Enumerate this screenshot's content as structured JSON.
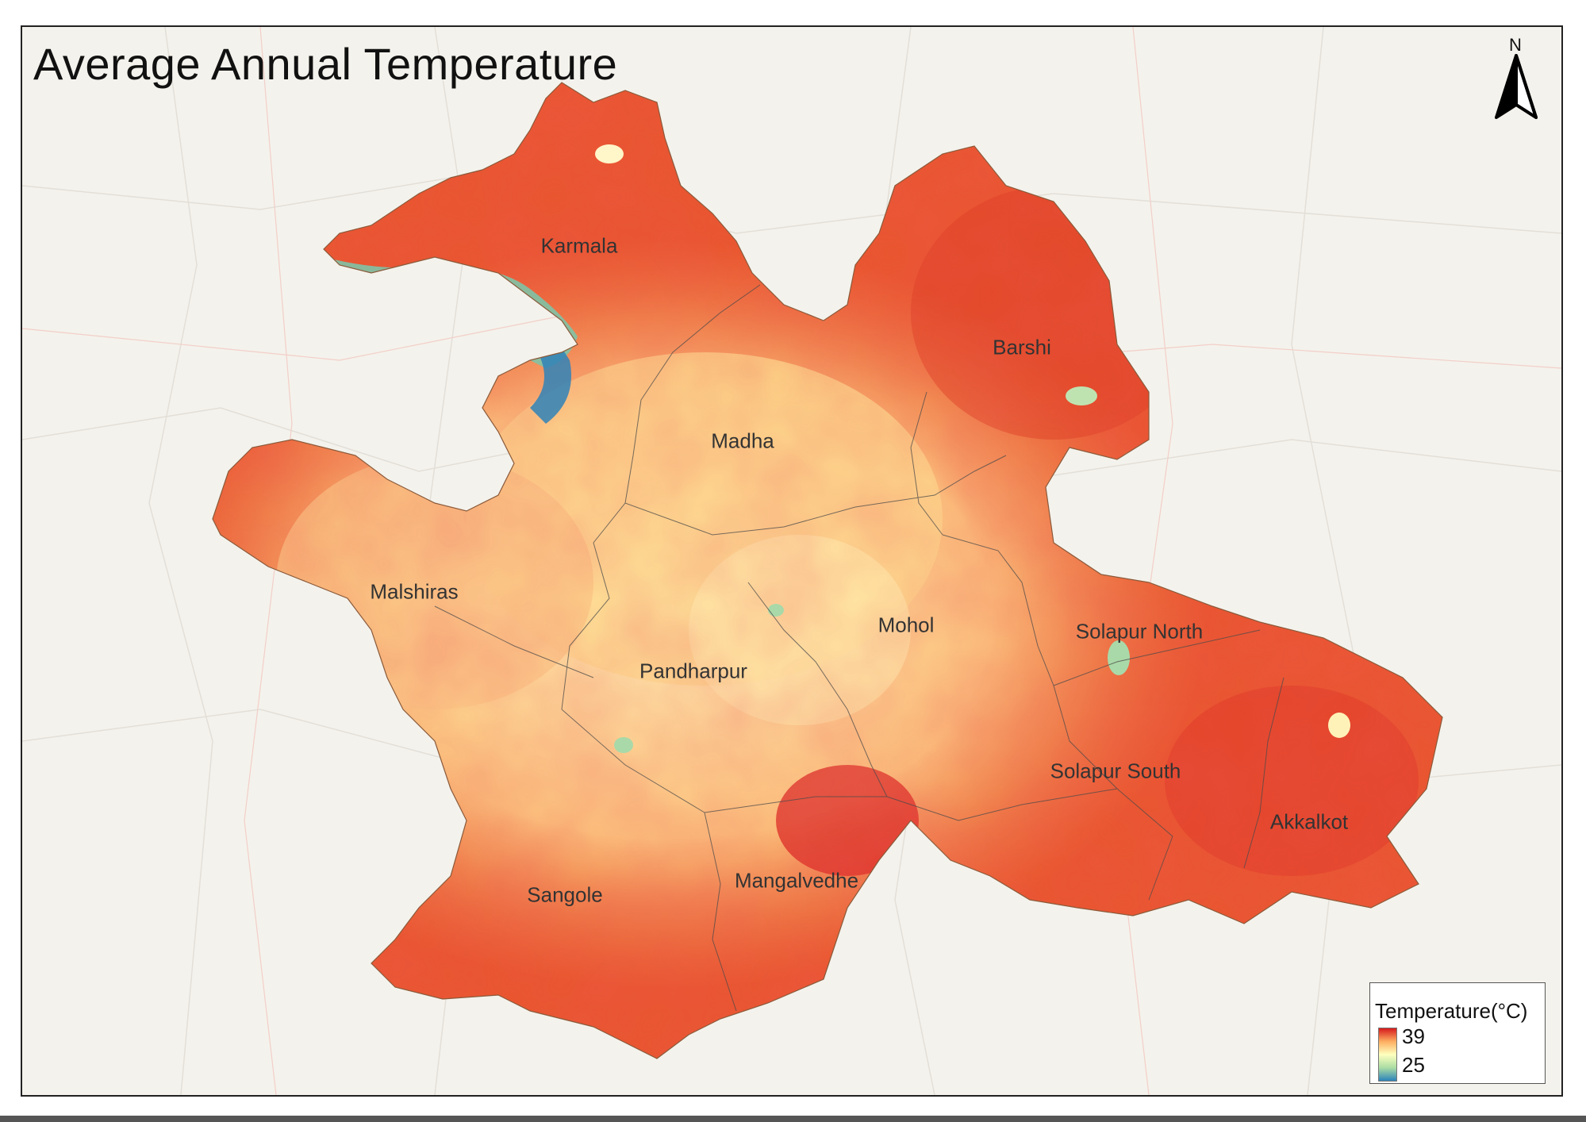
{
  "map": {
    "title": "Average Annual Temperature",
    "north_label": "N",
    "districts": [
      {
        "name": "Karmala"
      },
      {
        "name": "Barshi"
      },
      {
        "name": "Madha"
      },
      {
        "name": "Malshiras"
      },
      {
        "name": "Mohol"
      },
      {
        "name": "Solapur North"
      },
      {
        "name": "Pandharpur"
      },
      {
        "name": "Solapur South"
      },
      {
        "name": "Akkalkot"
      },
      {
        "name": "Sangole"
      },
      {
        "name": "Mangalvedhe"
      }
    ],
    "legend": {
      "title": "Temperature(°C)",
      "max": "39",
      "min": "25",
      "colors": [
        "#d7191c",
        "#fdae61",
        "#ffffbf",
        "#abdda4",
        "#2b83ba"
      ]
    }
  }
}
